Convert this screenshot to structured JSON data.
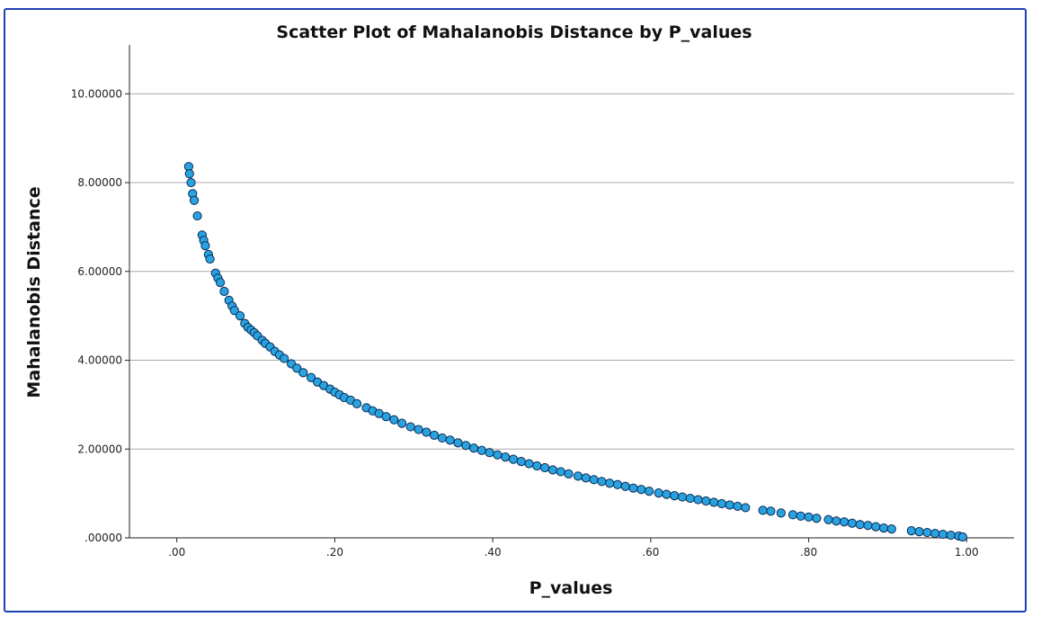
{
  "chart_data": {
    "type": "scatter",
    "title": "Scatter Plot of Mahalanobis Distance by P_values",
    "xlabel": "P_values",
    "ylabel": "Mahalanobis Distance",
    "xlim": [
      -0.06,
      1.06
    ],
    "ylim": [
      0,
      11.1
    ],
    "x_ticks": [
      0,
      0.2,
      0.4,
      0.6,
      0.8,
      1.0
    ],
    "x_tick_labels": [
      ".00",
      ".20",
      ".40",
      ".60",
      ".80",
      "1.00"
    ],
    "y_ticks": [
      0,
      2,
      4,
      6,
      8,
      10
    ],
    "y_tick_labels": [
      ".00000",
      "2.00000",
      "4.00000",
      "6.00000",
      "8.00000",
      "10.00000"
    ],
    "grid": "horizontal",
    "marker_fill": "#29a3e0",
    "marker_edge": "#0b2a55",
    "series": [
      {
        "points": [
          [
            0.015,
            8.36
          ],
          [
            0.016,
            8.2
          ],
          [
            0.018,
            8.0
          ],
          [
            0.02,
            7.75
          ],
          [
            0.022,
            7.6
          ],
          [
            0.026,
            7.25
          ],
          [
            0.032,
            6.82
          ],
          [
            0.034,
            6.7
          ],
          [
            0.036,
            6.58
          ],
          [
            0.04,
            6.38
          ],
          [
            0.042,
            6.28
          ],
          [
            0.049,
            5.96
          ],
          [
            0.052,
            5.85
          ],
          [
            0.055,
            5.75
          ],
          [
            0.06,
            5.55
          ],
          [
            0.066,
            5.35
          ],
          [
            0.07,
            5.22
          ],
          [
            0.073,
            5.12
          ],
          [
            0.08,
            5.0
          ],
          [
            0.086,
            4.83
          ],
          [
            0.09,
            4.74
          ],
          [
            0.094,
            4.68
          ],
          [
            0.098,
            4.62
          ],
          [
            0.102,
            4.55
          ],
          [
            0.108,
            4.45
          ],
          [
            0.112,
            4.38
          ],
          [
            0.118,
            4.3
          ],
          [
            0.124,
            4.2
          ],
          [
            0.13,
            4.12
          ],
          [
            0.136,
            4.04
          ],
          [
            0.145,
            3.92
          ],
          [
            0.152,
            3.82
          ],
          [
            0.16,
            3.72
          ],
          [
            0.17,
            3.61
          ],
          [
            0.178,
            3.51
          ],
          [
            0.186,
            3.43
          ],
          [
            0.194,
            3.35
          ],
          [
            0.2,
            3.28
          ],
          [
            0.206,
            3.22
          ],
          [
            0.212,
            3.16
          ],
          [
            0.22,
            3.1
          ],
          [
            0.228,
            3.02
          ],
          [
            0.24,
            2.93
          ],
          [
            0.248,
            2.86
          ],
          [
            0.256,
            2.8
          ],
          [
            0.265,
            2.73
          ],
          [
            0.275,
            2.66
          ],
          [
            0.285,
            2.58
          ],
          [
            0.296,
            2.5
          ],
          [
            0.306,
            2.44
          ],
          [
            0.316,
            2.38
          ],
          [
            0.326,
            2.31
          ],
          [
            0.336,
            2.25
          ],
          [
            0.346,
            2.2
          ],
          [
            0.356,
            2.14
          ],
          [
            0.366,
            2.08
          ],
          [
            0.376,
            2.02
          ],
          [
            0.386,
            1.97
          ],
          [
            0.396,
            1.92
          ],
          [
            0.406,
            1.87
          ],
          [
            0.416,
            1.82
          ],
          [
            0.426,
            1.77
          ],
          [
            0.436,
            1.72
          ],
          [
            0.446,
            1.67
          ],
          [
            0.456,
            1.62
          ],
          [
            0.466,
            1.58
          ],
          [
            0.476,
            1.53
          ],
          [
            0.486,
            1.49
          ],
          [
            0.496,
            1.44
          ],
          [
            0.508,
            1.39
          ],
          [
            0.518,
            1.35
          ],
          [
            0.528,
            1.31
          ],
          [
            0.538,
            1.27
          ],
          [
            0.548,
            1.23
          ],
          [
            0.558,
            1.2
          ],
          [
            0.568,
            1.16
          ],
          [
            0.578,
            1.12
          ],
          [
            0.588,
            1.09
          ],
          [
            0.598,
            1.05
          ],
          [
            0.61,
            1.01
          ],
          [
            0.62,
            0.98
          ],
          [
            0.63,
            0.95
          ],
          [
            0.64,
            0.92
          ],
          [
            0.65,
            0.89
          ],
          [
            0.66,
            0.86
          ],
          [
            0.67,
            0.83
          ],
          [
            0.68,
            0.8
          ],
          [
            0.69,
            0.77
          ],
          [
            0.7,
            0.74
          ],
          [
            0.71,
            0.71
          ],
          [
            0.72,
            0.68
          ],
          [
            0.742,
            0.62
          ],
          [
            0.752,
            0.6
          ],
          [
            0.765,
            0.56
          ],
          [
            0.78,
            0.52
          ],
          [
            0.79,
            0.49
          ],
          [
            0.8,
            0.47
          ],
          [
            0.81,
            0.44
          ],
          [
            0.825,
            0.41
          ],
          [
            0.835,
            0.38
          ],
          [
            0.845,
            0.36
          ],
          [
            0.855,
            0.33
          ],
          [
            0.865,
            0.3
          ],
          [
            0.875,
            0.28
          ],
          [
            0.885,
            0.25
          ],
          [
            0.895,
            0.22
          ],
          [
            0.905,
            0.2
          ],
          [
            0.93,
            0.16
          ],
          [
            0.94,
            0.14
          ],
          [
            0.95,
            0.12
          ],
          [
            0.96,
            0.1
          ],
          [
            0.97,
            0.08
          ],
          [
            0.98,
            0.06
          ],
          [
            0.99,
            0.04
          ],
          [
            0.995,
            0.02
          ]
        ]
      }
    ]
  }
}
